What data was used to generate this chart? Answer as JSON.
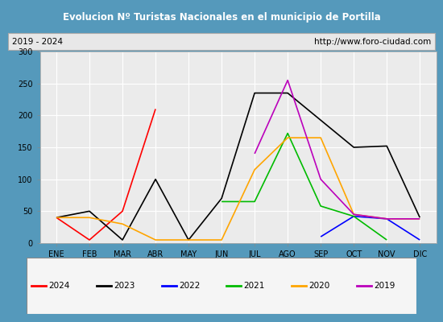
{
  "title": "Evolucion Nº Turistas Nacionales en el municipio de Portilla",
  "subtitle_left": "2019 - 2024",
  "subtitle_right": "http://www.foro-ciudad.com",
  "months": [
    "ENE",
    "FEB",
    "MAR",
    "ABR",
    "MAY",
    "JUN",
    "JUL",
    "AGO",
    "SEP",
    "OCT",
    "NOV",
    "DIC"
  ],
  "ylim": [
    0,
    300
  ],
  "yticks": [
    0,
    50,
    100,
    150,
    200,
    250,
    300
  ],
  "series": {
    "2024": {
      "color": "#ff0000",
      "data": [
        40,
        5,
        50,
        210,
        null,
        null,
        null,
        null,
        null,
        null,
        null,
        null
      ]
    },
    "2023": {
      "color": "#000000",
      "data": [
        40,
        50,
        5,
        100,
        5,
        70,
        235,
        235,
        null,
        150,
        152,
        40
      ]
    },
    "2022": {
      "color": "#0000ff",
      "data": [
        null,
        null,
        null,
        null,
        null,
        null,
        null,
        null,
        10,
        42,
        38,
        5
      ]
    },
    "2021": {
      "color": "#00bb00",
      "data": [
        null,
        null,
        null,
        null,
        null,
        65,
        65,
        172,
        58,
        42,
        5,
        null
      ]
    },
    "2020": {
      "color": "#ffa500",
      "data": [
        40,
        40,
        30,
        5,
        5,
        5,
        115,
        165,
        165,
        45,
        38,
        38
      ]
    },
    "2019": {
      "color": "#bb00bb",
      "data": [
        null,
        null,
        null,
        null,
        null,
        null,
        140,
        255,
        100,
        45,
        38,
        38
      ]
    }
  },
  "legend_order": [
    "2024",
    "2023",
    "2022",
    "2021",
    "2020",
    "2019"
  ],
  "title_bg_color": "#4499cc",
  "title_text_color": "#ffffff",
  "subtitle_bg_color": "#e8e8e8",
  "plot_bg_color": "#ebebeb",
  "grid_color": "#ffffff",
  "outer_bg_color": "#5599bb",
  "legend_bg": "#f5f5f5",
  "legend_border": "#888888"
}
